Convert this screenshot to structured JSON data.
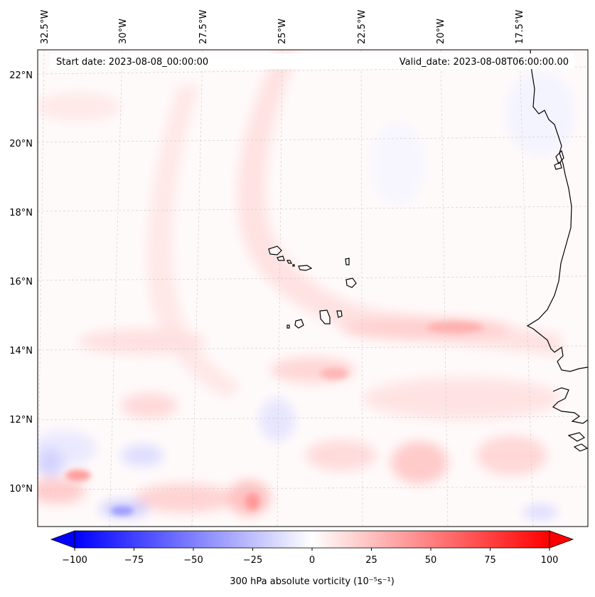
{
  "header": {
    "start_date": "Start date: 2023-08-08_00:00:00",
    "valid_date": "Valid_date: 2023-08-08T06:00:00.00"
  },
  "map": {
    "lon_labels": [
      "32.5°W",
      "30°W",
      "27.5°W",
      "25°W",
      "22.5°W",
      "20°W",
      "17.5°W"
    ],
    "lat_labels": [
      "22°N",
      "20°N",
      "18°N",
      "16°N",
      "14°N",
      "12°N",
      "10°N"
    ],
    "gridlines": true,
    "field_colormap": "bwr",
    "colors": {
      "negative": "#0000ff",
      "neutral": "#ffffff",
      "positive": "#ff0000",
      "coast": "#000000"
    }
  },
  "colorbar": {
    "label": "300 hPa absolute vorticity (10⁻⁵s⁻¹)",
    "tick_labels": [
      "−100",
      "−75",
      "−50",
      "−25",
      "0",
      "25",
      "50",
      "75",
      "100"
    ],
    "range": [
      -100,
      100
    ],
    "extend": "both",
    "orientation": "horizontal"
  }
}
